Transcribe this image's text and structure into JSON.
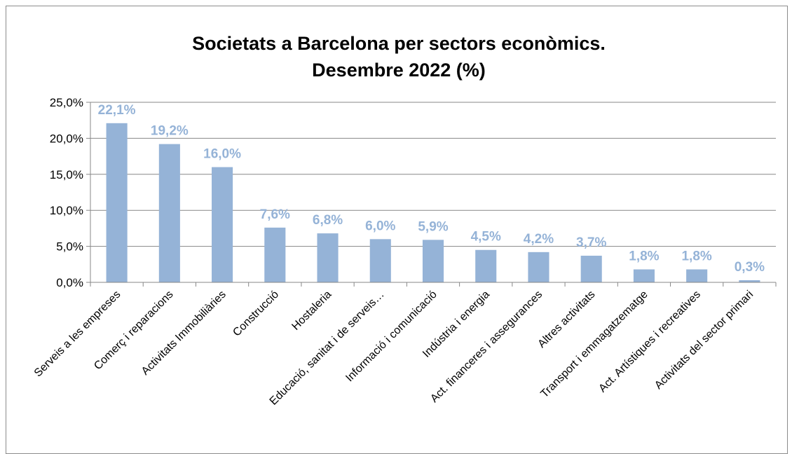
{
  "chart_data": {
    "type": "bar",
    "title_lines": [
      "Societats a Barcelona per sectors econòmics.",
      "Desembre 2022 (%)"
    ],
    "xlabel": "",
    "ylabel": "",
    "ylim": [
      0,
      25
    ],
    "yticks": [
      0,
      5,
      10,
      15,
      20,
      25
    ],
    "ytick_labels": [
      "0,0%",
      "5,0%",
      "10,0%",
      "15,0%",
      "20,0%",
      "25,0%"
    ],
    "grid": true,
    "legend": "none",
    "bar_color": "#95b3d7",
    "label_color": "#95b3d7",
    "categories": [
      "Serveis a les empreses",
      "Comerç i reparacions",
      "Activitats Immobiliàries",
      "Construcció",
      "Hostaleria",
      "Educació, sanitat i de serveis…",
      "Informació i comunicació",
      "Indústria i energia",
      "Act. financeres i assegurances",
      "Altres activitats",
      "Transport i emmagatzematge",
      "Act. Artístiques i recreatives",
      "Activitats del sector primari"
    ],
    "values": [
      22.1,
      19.2,
      16.0,
      7.6,
      6.8,
      6.0,
      5.9,
      4.5,
      4.2,
      3.7,
      1.8,
      1.8,
      0.3
    ],
    "data_labels": [
      "22,1%",
      "19,2%",
      "16,0%",
      "7,6%",
      "6,8%",
      "6,0%",
      "5,9%",
      "4,5%",
      "4,2%",
      "3,7%",
      "1,8%",
      "1,8%",
      "0,3%"
    ]
  }
}
